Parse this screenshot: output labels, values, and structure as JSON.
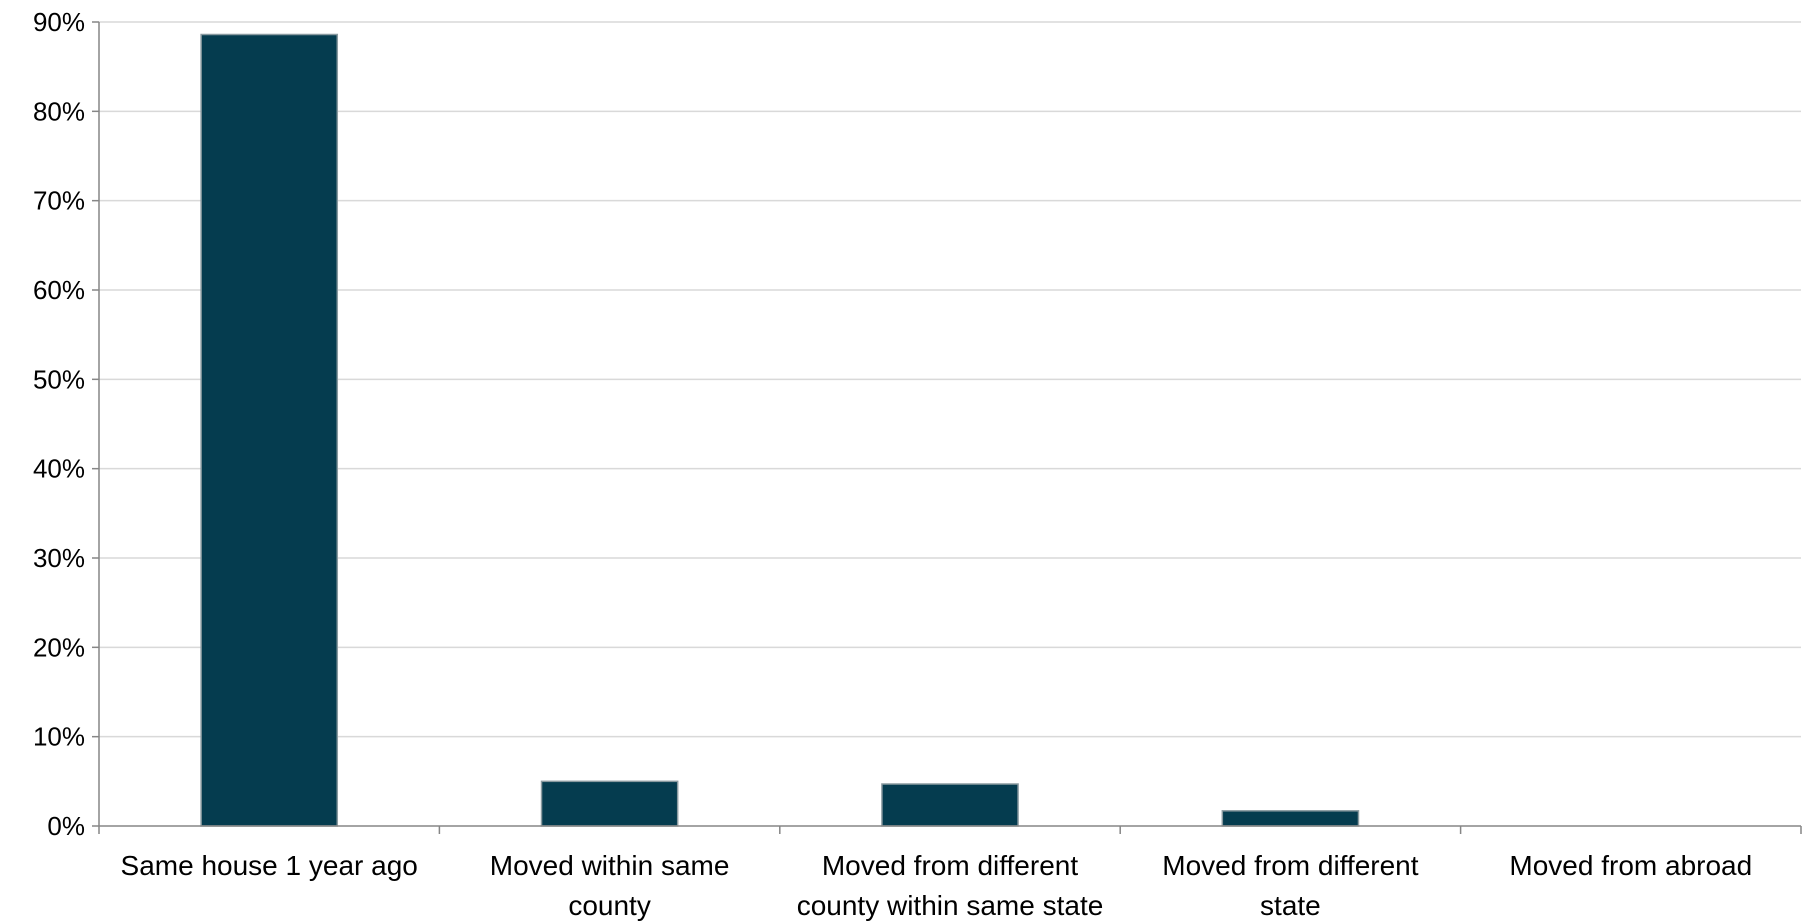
{
  "chart_data": {
    "type": "bar",
    "title": "",
    "xlabel": "",
    "ylabel": "",
    "categories": [
      [
        "Same house 1 year ago"
      ],
      [
        "Moved within same",
        "county"
      ],
      [
        "Moved from different",
        "county within same state"
      ],
      [
        "Moved from different",
        "state"
      ],
      [
        "Moved from abroad"
      ]
    ],
    "values": [
      0.886,
      0.05,
      0.047,
      0.017,
      0.0
    ],
    "ylim": [
      0,
      0.9
    ],
    "yticks": [
      0,
      0.1,
      0.2,
      0.3,
      0.4,
      0.5,
      0.6,
      0.7,
      0.8,
      0.9
    ],
    "ytick_labels": [
      "0%",
      "10%",
      "20%",
      "30%",
      "40%",
      "50%",
      "60%",
      "70%",
      "80%",
      "90%"
    ],
    "grid": true,
    "legend": "none",
    "colors": {
      "bar": "#053c4f",
      "grid": "#d9d9d9",
      "axis": "#868686"
    }
  }
}
